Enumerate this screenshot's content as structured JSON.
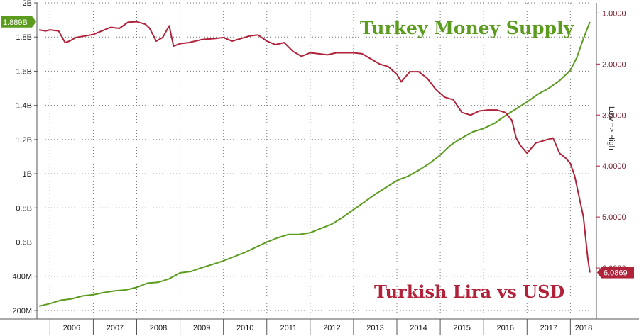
{
  "chart_data": {
    "type": "line",
    "title_green": "Turkey Money Supply",
    "title_red": "Turkish Lira vs USD",
    "right_axis_label": "Low => High",
    "x_ticks": [
      "2006",
      "2007",
      "2008",
      "2009",
      "2010",
      "2011",
      "2012",
      "2013",
      "2014",
      "2015",
      "2016",
      "2017",
      "2018"
    ],
    "y_left_ticks": [
      "2B",
      "1.8B",
      "1.6B",
      "1.4B",
      "1.2B",
      "1B",
      "0.8B",
      "0.6B",
      "400M",
      "200M"
    ],
    "y_left_values": [
      2000,
      1800,
      1600,
      1400,
      1200,
      1000,
      800,
      600,
      400,
      200
    ],
    "y_right_ticks": [
      "1.0000",
      "2.0000",
      "3.0000",
      "4.0000",
      "5.0000",
      "6.0000"
    ],
    "y_right_values": [
      1,
      2,
      3,
      4,
      5,
      6
    ],
    "xlim": [
      2005.7,
      2018.6
    ],
    "ylim_left": [
      150,
      2000
    ],
    "ylim_right": [
      0.8,
      7.0
    ],
    "right_axis_inverted": true,
    "grid": true,
    "series": [
      {
        "name": "Turkey Money Supply",
        "axis": "left",
        "color": "#5b9c1f",
        "last_label": "1.889B",
        "x": [
          2005.75,
          2006.0,
          2006.25,
          2006.5,
          2006.75,
          2007.0,
          2007.25,
          2007.5,
          2007.75,
          2008.0,
          2008.25,
          2008.5,
          2008.75,
          2009.0,
          2009.25,
          2009.5,
          2009.75,
          2010.0,
          2010.25,
          2010.5,
          2010.75,
          2011.0,
          2011.25,
          2011.5,
          2011.75,
          2012.0,
          2012.25,
          2012.5,
          2012.75,
          2013.0,
          2013.25,
          2013.5,
          2013.75,
          2014.0,
          2014.25,
          2014.5,
          2014.75,
          2015.0,
          2015.25,
          2015.5,
          2015.75,
          2016.0,
          2016.25,
          2016.5,
          2016.75,
          2017.0,
          2017.25,
          2017.5,
          2017.75,
          2018.0,
          2018.15,
          2018.3,
          2018.45
        ],
        "values": [
          225,
          240,
          260,
          268,
          285,
          292,
          305,
          315,
          320,
          335,
          360,
          365,
          385,
          420,
          428,
          450,
          470,
          490,
          515,
          540,
          570,
          600,
          625,
          645,
          645,
          655,
          680,
          705,
          745,
          790,
          835,
          880,
          920,
          960,
          985,
          1020,
          1060,
          1110,
          1170,
          1210,
          1245,
          1265,
          1295,
          1340,
          1380,
          1420,
          1465,
          1500,
          1545,
          1605,
          1680,
          1790,
          1889
        ]
      },
      {
        "name": "Turkish Lira vs USD",
        "axis": "right",
        "color": "#b0223a",
        "last_label": "6.0869",
        "x": [
          2005.75,
          2005.9,
          2006.0,
          2006.2,
          2006.35,
          2006.45,
          2006.6,
          2006.8,
          2007.0,
          2007.2,
          2007.4,
          2007.6,
          2007.8,
          2008.0,
          2008.2,
          2008.3,
          2008.45,
          2008.6,
          2008.75,
          2008.85,
          2009.0,
          2009.2,
          2009.5,
          2009.8,
          2010.0,
          2010.2,
          2010.4,
          2010.6,
          2010.8,
          2011.0,
          2011.2,
          2011.4,
          2011.6,
          2011.8,
          2012.0,
          2012.2,
          2012.4,
          2012.6,
          2012.8,
          2013.0,
          2013.2,
          2013.4,
          2013.6,
          2013.8,
          2014.0,
          2014.1,
          2014.3,
          2014.5,
          2014.7,
          2014.9,
          2015.1,
          2015.3,
          2015.5,
          2015.7,
          2015.9,
          2016.1,
          2016.3,
          2016.5,
          2016.65,
          2016.75,
          2016.85,
          2017.0,
          2017.2,
          2017.4,
          2017.6,
          2017.75,
          2017.9,
          2018.0,
          2018.1,
          2018.2,
          2018.3,
          2018.4,
          2018.45
        ],
        "values": [
          1.33,
          1.35,
          1.33,
          1.35,
          1.58,
          1.55,
          1.48,
          1.45,
          1.42,
          1.35,
          1.28,
          1.3,
          1.18,
          1.17,
          1.22,
          1.3,
          1.55,
          1.48,
          1.25,
          1.65,
          1.6,
          1.58,
          1.52,
          1.5,
          1.48,
          1.55,
          1.5,
          1.45,
          1.43,
          1.55,
          1.62,
          1.58,
          1.75,
          1.85,
          1.78,
          1.8,
          1.82,
          1.78,
          1.78,
          1.78,
          1.8,
          1.9,
          2.0,
          2.05,
          2.2,
          2.35,
          2.15,
          2.15,
          2.28,
          2.5,
          2.65,
          2.7,
          2.95,
          3.0,
          2.92,
          2.9,
          2.9,
          2.95,
          3.1,
          3.45,
          3.6,
          3.75,
          3.55,
          3.5,
          3.45,
          3.75,
          3.85,
          3.95,
          4.2,
          4.6,
          5.0,
          5.8,
          6.09
        ]
      }
    ]
  }
}
